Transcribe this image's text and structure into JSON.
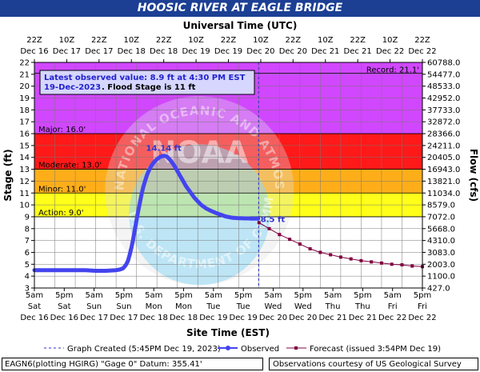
{
  "chart_data": {
    "type": "line",
    "title": "HOOSIC RIVER AT EAGLE BRIDGE",
    "top_axis_title": "Universal Time (UTC)",
    "xlabel": "Site Time (EST)",
    "ylabel": "Stage (ft)",
    "y2label": "Flow (cfs)",
    "ylim": [
      3,
      22
    ],
    "xlim": [
      "2023-12-16T05:00",
      "2023-12-22T17:00"
    ],
    "y_ticks": [
      3,
      4,
      5,
      6,
      7,
      8,
      9,
      10,
      11,
      12,
      13,
      14,
      15,
      16,
      17,
      18,
      19,
      20,
      21,
      22
    ],
    "flow_ticks": [
      "427.0",
      "1100.0",
      "2003.0",
      "3083.0",
      "4310.0",
      "5668.0",
      "7072.0",
      "8579.0",
      "11034.0",
      "13821.0",
      "16943.0",
      "20405.0",
      "24211.0",
      "28366.0",
      "32872.0",
      "37733.0",
      "42952.0",
      "48533.0",
      "54477.0",
      "60788.0"
    ],
    "bottom_ticks": [
      {
        "t": "5am",
        "d": "Sat",
        "dt": "Dec 16"
      },
      {
        "t": "5pm",
        "d": "Sat",
        "dt": "Dec 16"
      },
      {
        "t": "5am",
        "d": "Sun",
        "dt": "Dec 17"
      },
      {
        "t": "5pm",
        "d": "Sun",
        "dt": "Dec 17"
      },
      {
        "t": "5am",
        "d": "Mon",
        "dt": "Dec 18"
      },
      {
        "t": "5pm",
        "d": "Mon",
        "dt": "Dec 18"
      },
      {
        "t": "5am",
        "d": "Tue",
        "dt": "Dec 19"
      },
      {
        "t": "5pm",
        "d": "Tue",
        "dt": "Dec 19"
      },
      {
        "t": "5am",
        "d": "Wed",
        "dt": "Dec 20"
      },
      {
        "t": "5pm",
        "d": "Wed",
        "dt": "Dec 20"
      },
      {
        "t": "5am",
        "d": "Thu",
        "dt": "Dec 21"
      },
      {
        "t": "5pm",
        "d": "Thu",
        "dt": "Dec 21"
      },
      {
        "t": "5am",
        "d": "Fri",
        "dt": "Dec 22"
      },
      {
        "t": "5pm",
        "d": "Fri",
        "dt": "Dec 22"
      }
    ],
    "top_ticks": [
      {
        "t": "22Z",
        "dt": "Dec 16"
      },
      {
        "t": "10Z",
        "dt": "Dec 17"
      },
      {
        "t": "22Z",
        "dt": "Dec 17"
      },
      {
        "t": "10Z",
        "dt": "Dec 18"
      },
      {
        "t": "22Z",
        "dt": "Dec 18"
      },
      {
        "t": "10Z",
        "dt": "Dec 19"
      },
      {
        "t": "22Z",
        "dt": "Dec 19"
      },
      {
        "t": "10Z",
        "dt": "Dec 20"
      },
      {
        "t": "22Z",
        "dt": "Dec 20"
      },
      {
        "t": "10Z",
        "dt": "Dec 21"
      },
      {
        "t": "22Z",
        "dt": "Dec 21"
      },
      {
        "t": "10Z",
        "dt": "Dec 22"
      },
      {
        "t": "22Z",
        "dt": "Dec 22"
      }
    ],
    "flood_categories": [
      {
        "name": "Action",
        "label": "Action: 9.0'",
        "stage": 9.0,
        "color": "#ffff00"
      },
      {
        "name": "Minor",
        "label": "Minor: 11.0'",
        "stage": 11.0,
        "color": "#ffa500"
      },
      {
        "name": "Moderate",
        "label": "Moderate: 13.0'",
        "stage": 13.0,
        "color": "#ff0000"
      },
      {
        "name": "Major",
        "label": "Major: 16.0'",
        "stage": 16.0,
        "color": "#cc33ff"
      }
    ],
    "record": {
      "label": "Record: 21.1'",
      "stage": 21.1
    },
    "latest_observed": {
      "line1": "Latest observed value: 8.9 ft at 4:30 PM EST",
      "date": "19-Dec-2023",
      "flood_stage": ". Flood Stage is 11 ft"
    },
    "crest_label": "14.14 ft",
    "forecast_start_label": "8.5 ft",
    "watermark_text": "NATIONAL OCEANIC AND ATMOSPHERIC ADMINISTRATION",
    "watermark_text2": "U.S. DEPARTMENT OF COMMERCE",
    "watermark_logo": "NOAA",
    "graph_created_time_hours": 131.75,
    "series": [
      {
        "name": "Observed",
        "color": "#4444ee",
        "x": [
          0,
          6,
          12,
          18,
          24,
          30,
          36,
          42,
          48,
          50,
          52,
          53,
          54,
          55,
          56,
          57,
          58,
          59,
          60,
          61,
          62,
          63,
          64,
          65,
          66,
          67,
          68,
          69,
          70,
          71,
          72,
          73,
          74,
          75,
          76,
          77,
          78,
          79,
          80,
          81,
          82,
          83,
          84,
          85,
          86,
          87,
          88,
          89,
          90,
          91,
          92,
          93,
          94,
          95,
          96,
          97,
          98,
          99,
          100,
          101,
          102,
          103,
          104,
          105,
          106,
          107,
          108,
          109,
          110,
          111,
          112,
          113,
          114,
          115,
          116,
          117,
          118,
          119,
          120,
          121,
          122,
          123,
          124,
          125,
          126,
          127,
          128,
          129,
          130,
          131,
          131.5
        ],
        "y": [
          4.5,
          4.5,
          4.5,
          4.5,
          4.5,
          4.5,
          4.45,
          4.45,
          4.5,
          4.55,
          4.65,
          4.8,
          5.0,
          5.3,
          5.8,
          6.4,
          7.1,
          7.9,
          8.7,
          9.5,
          10.2,
          10.9,
          11.5,
          12.0,
          12.45,
          12.8,
          13.1,
          13.35,
          13.55,
          13.7,
          13.85,
          13.95,
          14.05,
          14.1,
          14.14,
          14.12,
          14.05,
          13.9,
          13.75,
          13.55,
          13.35,
          13.1,
          12.85,
          12.6,
          12.35,
          12.1,
          11.85,
          11.6,
          11.4,
          11.2,
          11.0,
          10.8,
          10.6,
          10.45,
          10.3,
          10.15,
          10.0,
          9.9,
          9.8,
          9.7,
          9.62,
          9.55,
          9.48,
          9.42,
          9.36,
          9.3,
          9.25,
          9.2,
          9.15,
          9.1,
          9.05,
          9.0,
          8.98,
          8.95,
          8.93,
          8.9,
          8.9,
          8.89,
          8.88,
          8.88,
          8.87,
          8.87,
          8.86,
          8.86,
          8.86,
          8.85,
          8.85,
          8.85,
          8.85,
          8.85,
          8.85
        ]
      },
      {
        "name": "Forecast",
        "color": "#800040",
        "x": [
          132,
          138,
          144,
          150,
          156,
          162,
          168,
          174,
          180,
          186,
          192,
          198,
          204,
          210,
          216,
          222,
          228
        ],
        "y": [
          8.5,
          8.0,
          7.5,
          7.1,
          6.7,
          6.3,
          6.0,
          5.8,
          5.6,
          5.45,
          5.3,
          5.2,
          5.1,
          5.0,
          4.95,
          4.85,
          4.8
        ]
      }
    ]
  },
  "legend": {
    "created": "Graph Created (5:45PM Dec 19, 2023)",
    "observed": "Observed",
    "forecast": "Forecast (issued 3:54PM Dec 19)"
  },
  "footer": {
    "left": "EAGN6(plotting HGIRG) \"Gage 0\" Datum: 355.41'",
    "right": "Observations courtesy of US Geological Survey"
  }
}
